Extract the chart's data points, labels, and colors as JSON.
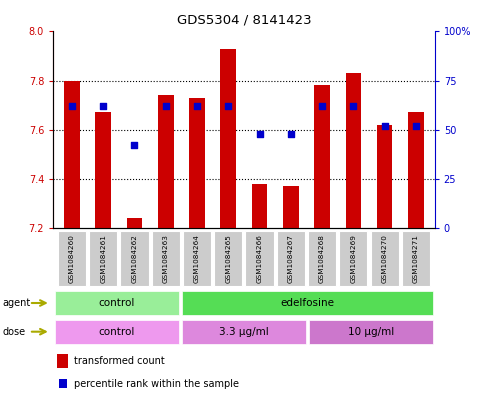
{
  "title": "GDS5304 / 8141423",
  "samples": [
    "GSM1084260",
    "GSM1084261",
    "GSM1084262",
    "GSM1084263",
    "GSM1084264",
    "GSM1084265",
    "GSM1084266",
    "GSM1084267",
    "GSM1084268",
    "GSM1084269",
    "GSM1084270",
    "GSM1084271"
  ],
  "transformed_counts": [
    7.8,
    7.67,
    7.24,
    7.74,
    7.73,
    7.93,
    7.38,
    7.37,
    7.78,
    7.83,
    7.62,
    7.67
  ],
  "percentile_ranks": [
    62,
    62,
    42,
    62,
    62,
    62,
    48,
    48,
    62,
    62,
    52,
    52
  ],
  "ylim_left": [
    7.2,
    8.0
  ],
  "ylim_right": [
    0,
    100
  ],
  "yticks_left": [
    7.2,
    7.4,
    7.6,
    7.8,
    8.0
  ],
  "yticks_right": [
    0,
    25,
    50,
    75,
    100
  ],
  "ytick_labels_right": [
    "0",
    "25",
    "50",
    "75",
    "100%"
  ],
  "bar_color": "#cc0000",
  "dot_color": "#0000cc",
  "bar_bottom": 7.2,
  "agent_labels": [
    {
      "label": "control",
      "start": 0,
      "end": 3,
      "color": "#99ee99"
    },
    {
      "label": "edelfosine",
      "start": 4,
      "end": 11,
      "color": "#55dd55"
    }
  ],
  "dose_labels": [
    {
      "label": "control",
      "start": 0,
      "end": 3,
      "color": "#ee99ee"
    },
    {
      "label": "3.3 μg/ml",
      "start": 4,
      "end": 7,
      "color": "#dd88dd"
    },
    {
      "label": "10 μg/ml",
      "start": 8,
      "end": 11,
      "color": "#cc77cc"
    }
  ],
  "legend_bar_label": "transformed count",
  "legend_dot_label": "percentile rank within the sample",
  "tick_color_left": "#cc0000",
  "tick_color_right": "#0000cc",
  "sample_bg_color": "#cccccc",
  "dotted_levels": [
    7.4,
    7.6,
    7.8
  ],
  "bar_width": 0.5
}
